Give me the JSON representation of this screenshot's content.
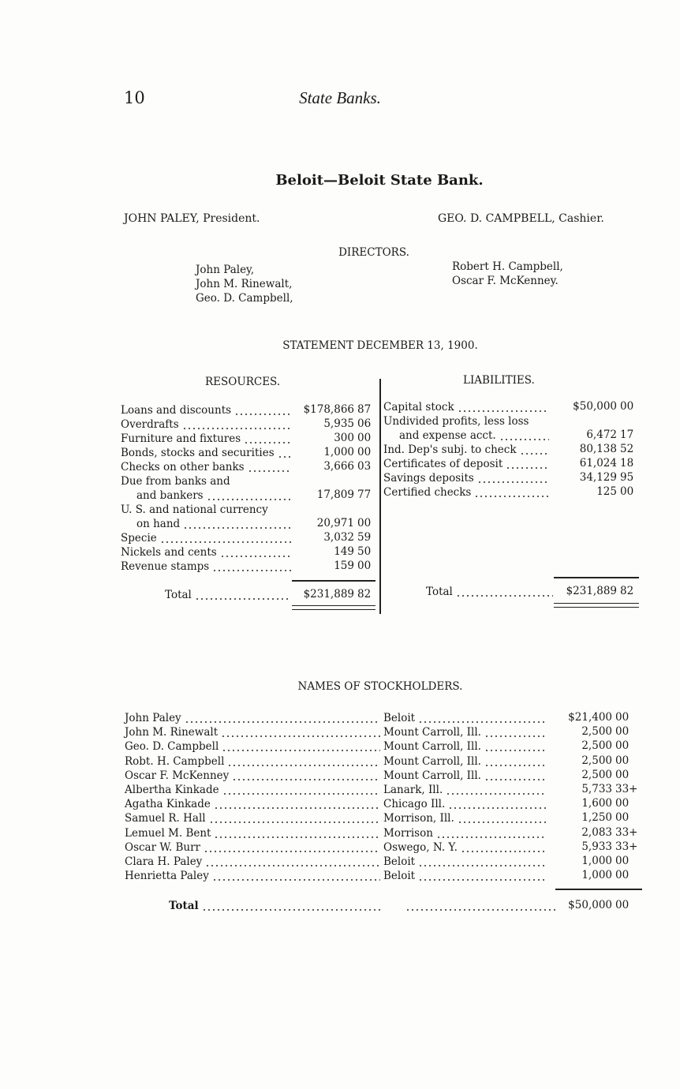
{
  "header": {
    "page_number": "10",
    "running_title": "State Banks."
  },
  "bank_title": "Beloit—Beloit State Bank.",
  "president": "JOHN PALEY, President.",
  "cashier": "GEO. D. CAMPBELL, Cashier.",
  "directors": {
    "heading": "DIRECTORS.",
    "left": [
      "John Paley,",
      "John M. Rinewalt,",
      "Geo. D. Campbell,"
    ],
    "right": [
      "Robert H. Campbell,",
      "Oscar F. McKenney."
    ]
  },
  "statement": {
    "heading": "STATEMENT DECEMBER 13, 1900.",
    "resources_heading": "RESOURCES.",
    "liabilities_heading": "LIABILITIES.",
    "resources": [
      {
        "label": "Loans and discounts",
        "dollars": "$178,866",
        "cents": "87"
      },
      {
        "label": "Overdrafts",
        "dollars": "5,935",
        "cents": "06"
      },
      {
        "label": "Furniture and fixtures",
        "dollars": "300",
        "cents": "00"
      },
      {
        "label": "Bonds, stocks and securities",
        "dollars": "1,000",
        "cents": "00"
      },
      {
        "label": "Checks on other banks",
        "dollars": "3,666",
        "cents": "03"
      },
      {
        "label": "Due from banks and",
        "dollars": "",
        "cents": ""
      },
      {
        "label": "and bankers",
        "dollars": "17,809",
        "cents": "77",
        "indent": true
      },
      {
        "label": "U. S. and national currency",
        "dollars": "",
        "cents": ""
      },
      {
        "label": "on hand",
        "dollars": "20,971",
        "cents": "00",
        "indent": true
      },
      {
        "label": "Specie",
        "dollars": "3,032",
        "cents": "59"
      },
      {
        "label": "Nickels and cents",
        "dollars": "149",
        "cents": "50"
      },
      {
        "label": "Revenue stamps",
        "dollars": "159",
        "cents": "00"
      }
    ],
    "resources_total": {
      "label": "Total",
      "dollars": "$231,889",
      "cents": "82"
    },
    "liabilities": [
      {
        "label": "Capital stock",
        "dollars": "$50,000",
        "cents": "00"
      },
      {
        "label": "Undivided profits, less loss",
        "dollars": "",
        "cents": ""
      },
      {
        "label": "and expense acct.",
        "dollars": "6,472",
        "cents": "17",
        "indent": true
      },
      {
        "label": "Ind. Dep's subj. to check",
        "dollars": "80,138",
        "cents": "52"
      },
      {
        "label": "Certificates of deposit",
        "dollars": "61,024",
        "cents": "18"
      },
      {
        "label": "Savings deposits",
        "dollars": "34,129",
        "cents": "95"
      },
      {
        "label": "Certified checks",
        "dollars": "125",
        "cents": "00"
      }
    ],
    "liabilities_total": {
      "label": "Total",
      "dollars": "$231,889",
      "cents": "82"
    }
  },
  "stockholders": {
    "heading": "NAMES OF STOCKHOLDERS.",
    "rows": [
      {
        "name": "John Paley",
        "residence": "Beloit",
        "dollars": "$21,400",
        "cents": "00"
      },
      {
        "name": "John M. Rinewalt",
        "residence": "Mount Carroll, Ill.",
        "dollars": "2,500",
        "cents": "00"
      },
      {
        "name": "Geo. D. Campbell",
        "residence": "Mount Carroll, Ill.",
        "dollars": "2,500",
        "cents": "00"
      },
      {
        "name": "Robt. H. Campbell",
        "residence": "Mount Carroll, Ill.",
        "dollars": "2,500",
        "cents": "00"
      },
      {
        "name": "Oscar F. McKenney",
        "residence": "Mount Carroll, Ill.",
        "dollars": "2,500",
        "cents": "00"
      },
      {
        "name": "Albertha Kinkade",
        "residence": "Lanark, Ill.",
        "dollars": "5,733",
        "cents": "33+"
      },
      {
        "name": "Agatha Kinkade",
        "residence": "Chicago Ill.",
        "dollars": "1,600",
        "cents": "00"
      },
      {
        "name": "Samuel R. Hall",
        "residence": "Morrison, Ill.",
        "dollars": "1,250",
        "cents": "00"
      },
      {
        "name": "Lemuel M. Bent",
        "residence": "Morrison",
        "dollars": "2,083",
        "cents": "33+"
      },
      {
        "name": "Oscar W. Burr",
        "residence": "Oswego, N. Y.",
        "dollars": "5,933",
        "cents": "33+"
      },
      {
        "name": "Clara H. Paley",
        "residence": "Beloit",
        "dollars": "1,000",
        "cents": "00"
      },
      {
        "name": "Henrietta Paley",
        "residence": "Beloit",
        "dollars": "1,000",
        "cents": "00"
      }
    ],
    "total": {
      "label": "Total",
      "dollars": "$50,000",
      "cents": "00"
    }
  }
}
